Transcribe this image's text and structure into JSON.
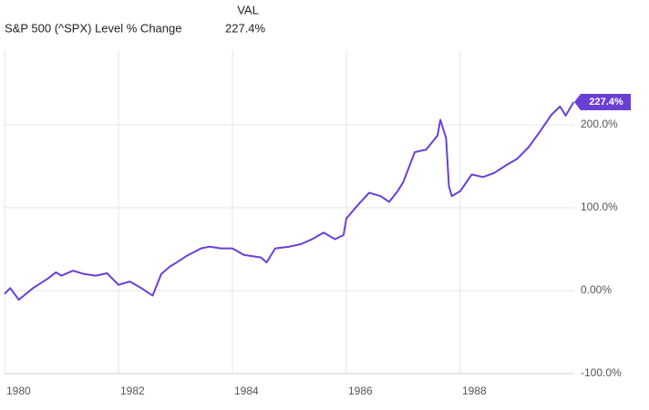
{
  "chart_data": {
    "type": "line",
    "legend_header": "VAL",
    "last_value": {
      "value": 227.4,
      "label": "227.4%"
    },
    "series": [
      {
        "name": "S&P 500 (^SPX) Level % Change",
        "color": "#6a3fd6",
        "x": [
          1980.0,
          1980.1,
          1980.25,
          1980.5,
          1980.75,
          1980.9,
          1981.0,
          1981.2,
          1981.4,
          1981.6,
          1981.8,
          1982.0,
          1982.2,
          1982.4,
          1982.6,
          1982.75,
          1982.9,
          1983.0,
          1983.2,
          1983.45,
          1983.6,
          1983.8,
          1984.0,
          1984.2,
          1984.5,
          1984.6,
          1984.75,
          1985.0,
          1985.2,
          1985.4,
          1985.6,
          1985.8,
          1985.95,
          1986.0,
          1986.2,
          1986.4,
          1986.6,
          1986.75,
          1986.9,
          1987.0,
          1987.2,
          1987.4,
          1987.6,
          1987.65,
          1987.75,
          1987.8,
          1987.85,
          1988.0,
          1988.2,
          1988.4,
          1988.6,
          1988.8,
          1989.0,
          1989.2,
          1989.4,
          1989.6,
          1989.75,
          1989.85,
          1989.99
        ],
        "values": [
          -4,
          3,
          -11,
          3,
          14,
          22,
          18,
          24,
          20,
          18,
          21,
          7,
          11,
          3,
          -6,
          20,
          29,
          33,
          42,
          51,
          53,
          51,
          51,
          43,
          40,
          34,
          51,
          53,
          56,
          62,
          70,
          62,
          67,
          87,
          103,
          118,
          114,
          107,
          120,
          131,
          167,
          170,
          187,
          206,
          184,
          126,
          114,
          120,
          140,
          137,
          142,
          151,
          159,
          173,
          192,
          212,
          222,
          211,
          227.4
        ]
      }
    ],
    "xlim": [
      1980,
      1990
    ],
    "xticks": [
      1980,
      1982,
      1984,
      1986,
      1988
    ],
    "ylim": [
      -100,
      290
    ],
    "yticks": [
      {
        "value": 200,
        "label": "200.0%"
      },
      {
        "value": 100,
        "label": "100.0%"
      },
      {
        "value": 0,
        "label": "0.00%"
      },
      {
        "value": -100,
        "label": "-100.0%"
      }
    ],
    "grid": true
  }
}
